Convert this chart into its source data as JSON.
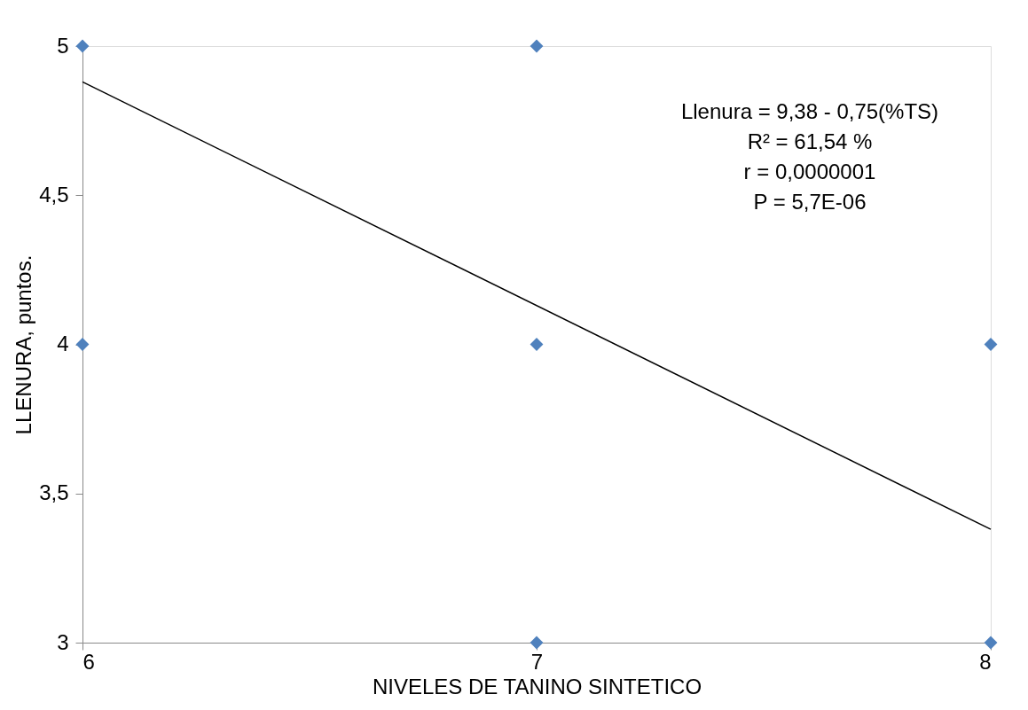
{
  "chart_data": {
    "type": "scatter",
    "xlabel": "NIVELES DE TANINO SINTETICO",
    "ylabel": "LLENURA, puntos.",
    "xlim": [
      6,
      8
    ],
    "xticks": [
      6,
      7,
      8
    ],
    "ylim": [
      3,
      5
    ],
    "yticks": [
      3,
      {
        "value": 3.5,
        "label": "3,5"
      },
      4,
      {
        "value": 4.5,
        "label": "4,5"
      },
      5
    ],
    "grid": false,
    "series": [
      {
        "marker": "diamond",
        "color": "#4f81bd",
        "x": [
          6,
          6,
          7,
          7,
          7,
          8,
          8
        ],
        "values": [
          5,
          4,
          5,
          4,
          3,
          4,
          3
        ]
      },
      {
        "type": "line",
        "color": "#000000",
        "x": [
          6,
          8
        ],
        "values": [
          4.88,
          3.38
        ]
      }
    ],
    "annotations": [
      "Llenura  = 9,38 - 0,75(%TS)",
      "R² = 61,54 %",
      "r = 0,0000001",
      "P =  5,7E-06"
    ]
  }
}
